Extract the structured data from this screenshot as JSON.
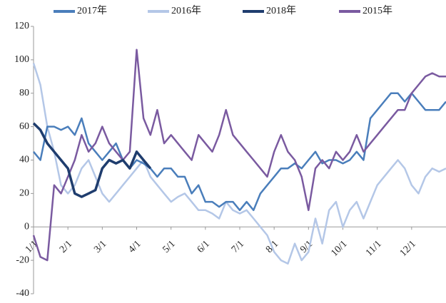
{
  "chart_data": {
    "type": "line",
    "categories": [
      "1/1",
      null,
      null,
      null,
      null,
      "2/1",
      null,
      null,
      null,
      null,
      "3/1",
      null,
      null,
      null,
      null,
      "4/1",
      null,
      null,
      null,
      null,
      "5/1",
      null,
      null,
      null,
      null,
      "6/1",
      null,
      null,
      null,
      null,
      "7/1",
      null,
      null,
      null,
      null,
      "8/1",
      null,
      null,
      null,
      null,
      "9/1",
      null,
      null,
      null,
      null,
      "10/1",
      null,
      null,
      null,
      null,
      "11/1",
      null,
      null,
      null,
      null,
      "12/1",
      null,
      null,
      null,
      null,
      null
    ],
    "series": [
      {
        "name": "2017年",
        "color": "#4a7ebb",
        "values": [
          45,
          40,
          60,
          60,
          58,
          60,
          55,
          65,
          50,
          45,
          40,
          45,
          50,
          40,
          35,
          40,
          38,
          35,
          30,
          35,
          35,
          30,
          30,
          20,
          25,
          15,
          15,
          12,
          15,
          15,
          10,
          15,
          10,
          20,
          25,
          30,
          35,
          35,
          38,
          35,
          40,
          45,
          38,
          40,
          40,
          38,
          40,
          45,
          40,
          65,
          70,
          75,
          80,
          80,
          75,
          80,
          75,
          70,
          70,
          70,
          75
        ]
      },
      {
        "name": "2016年",
        "color": "#b4c7e7",
        "values": [
          98,
          85,
          60,
          45,
          25,
          20,
          25,
          35,
          40,
          30,
          20,
          15,
          20,
          25,
          30,
          35,
          40,
          30,
          25,
          20,
          15,
          18,
          20,
          15,
          10,
          10,
          8,
          5,
          15,
          10,
          8,
          10,
          5,
          0,
          -5,
          -15,
          -20,
          -22,
          -10,
          -20,
          -15,
          5,
          -10,
          10,
          15,
          0,
          10,
          15,
          5,
          15,
          25,
          30,
          35,
          40,
          35,
          25,
          20,
          30,
          35,
          33,
          35
        ]
      },
      {
        "name": "2018年",
        "color": "#1f3d6e",
        "values": [
          62,
          58,
          50,
          45,
          40,
          35,
          20,
          18,
          20,
          22,
          35,
          40,
          38,
          40,
          35,
          45,
          40,
          35,
          null,
          null,
          null,
          null,
          null,
          null,
          null,
          null,
          null,
          null,
          null,
          null,
          null,
          null,
          null,
          null,
          null,
          null,
          null,
          null,
          null,
          null,
          null,
          null,
          null,
          null,
          null,
          null,
          null,
          null,
          null,
          null,
          null,
          null,
          null,
          null,
          null,
          null,
          null,
          null,
          null,
          null,
          null
        ]
      },
      {
        "name": "2015年",
        "color": "#7a5aa0",
        "values": [
          -5,
          -18,
          -20,
          25,
          20,
          30,
          40,
          55,
          45,
          50,
          60,
          50,
          45,
          40,
          45,
          106,
          65,
          55,
          70,
          50,
          55,
          50,
          45,
          40,
          55,
          50,
          45,
          55,
          70,
          55,
          50,
          45,
          40,
          35,
          30,
          45,
          55,
          45,
          40,
          30,
          10,
          35,
          40,
          35,
          45,
          40,
          45,
          55,
          45,
          50,
          55,
          60,
          65,
          70,
          70,
          80,
          85,
          90,
          92,
          90,
          90
        ]
      }
    ],
    "ylim": [
      -40,
      120
    ],
    "yticks": [
      -40,
      -20,
      0,
      20,
      40,
      60,
      80,
      100,
      120
    ],
    "negative_tick_color": "#e03030",
    "legend": "top",
    "grid": false
  }
}
